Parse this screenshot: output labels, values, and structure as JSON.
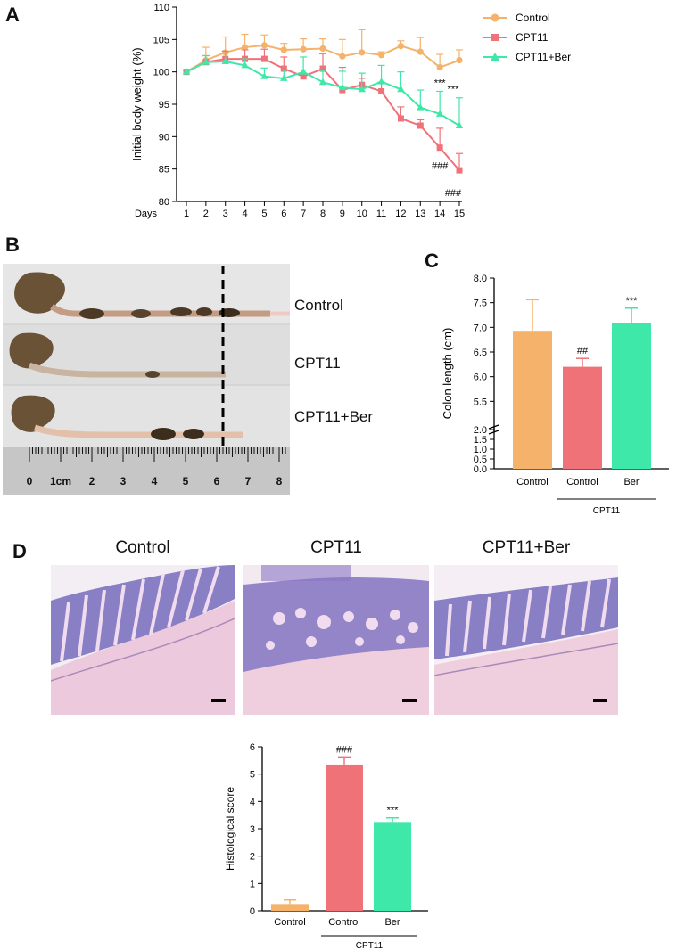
{
  "panels": {
    "a": "A",
    "b": "B",
    "c": "C",
    "d": "D"
  },
  "colors": {
    "control": "#f5b26b",
    "cpt11": "#f07279",
    "ber": "#3ee8a8"
  },
  "chart_data": [
    {
      "type": "line",
      "panel": "A",
      "ylabel": "Initial body weight (%)",
      "xlabel": "Days",
      "ylim": [
        80,
        110
      ],
      "yticks": [
        80,
        85,
        90,
        95,
        100,
        105,
        110
      ],
      "x": [
        1,
        2,
        3,
        4,
        5,
        6,
        7,
        8,
        9,
        10,
        11,
        12,
        13,
        14,
        15
      ],
      "legend_position": "top-right",
      "series": [
        {
          "name": "Control",
          "marker": "circle",
          "values": [
            100,
            101.8,
            103.0,
            103.8,
            104.1,
            103.4,
            103.5,
            103.6,
            102.4,
            103.0,
            102.6,
            104.0,
            103.1,
            100.7,
            101.8
          ],
          "errors": [
            0.3,
            2.0,
            2.4,
            2.0,
            1.6,
            1.0,
            1.6,
            1.5,
            2.6,
            3.5,
            0.5,
            0.8,
            2.2,
            2.0,
            1.6
          ]
        },
        {
          "name": "CPT11",
          "marker": "square",
          "values": [
            100,
            101.5,
            102.0,
            102.0,
            102.0,
            100.5,
            99.3,
            100.5,
            97.2,
            98.0,
            97.0,
            92.8,
            91.7,
            88.3,
            84.8
          ],
          "errors": [
            0.3,
            1.0,
            1.2,
            1.4,
            1.5,
            1.8,
            1.0,
            2.3,
            3.5,
            1.0,
            1.4,
            1.8,
            0.9,
            3.0,
            2.6
          ]
        },
        {
          "name": "CPT11+Ber",
          "marker": "triangle",
          "values": [
            100,
            101.5,
            101.6,
            101.0,
            99.3,
            99.0,
            100.0,
            98.4,
            97.6,
            97.3,
            98.5,
            97.3,
            94.5,
            93.5,
            91.7
          ],
          "errors": [
            0.3,
            1.0,
            1.3,
            1.0,
            1.3,
            1.3,
            2.3,
            1.8,
            2.5,
            2.5,
            2.5,
            2.7,
            2.7,
            3.5,
            4.3
          ]
        }
      ],
      "annotations": [
        {
          "x": 14,
          "text": "***",
          "pos": "above"
        },
        {
          "x": 15,
          "text": "***",
          "pos": "above"
        },
        {
          "x": 14,
          "text": "###",
          "pos": "below"
        },
        {
          "x": 15,
          "text": "###",
          "pos": "below"
        }
      ]
    },
    {
      "type": "bar",
      "panel": "C",
      "ylabel": "Colon length (cm)",
      "y_axis_break": [
        2.0,
        5.0
      ],
      "yticks": [
        "0.0",
        "0.5",
        "1.0",
        "1.5",
        "2.0",
        "5.5",
        "6.0",
        "6.5",
        "7.0",
        "7.5",
        "8.0"
      ],
      "categories": [
        "Control",
        "Control",
        "Ber"
      ],
      "group_label": "CPT11",
      "values": [
        6.93,
        6.2,
        7.08
      ],
      "errors": [
        0.63,
        0.17,
        0.31
      ],
      "bar_colors": [
        "#f5b26b",
        "#f07279",
        "#3ee8a8"
      ],
      "significance": [
        "",
        "##",
        "***"
      ]
    },
    {
      "type": "bar",
      "panel": "D",
      "ylabel": "Histological score",
      "ylim": [
        0,
        6
      ],
      "yticks": [
        0,
        1,
        2,
        3,
        4,
        5,
        6
      ],
      "categories": [
        "Control",
        "Control",
        "Ber"
      ],
      "group_label": "CPT11",
      "values": [
        0.25,
        5.35,
        3.25
      ],
      "errors": [
        0.15,
        0.28,
        0.15
      ],
      "bar_colors": [
        "#f5b26b",
        "#f07279",
        "#3ee8a8"
      ],
      "significance": [
        "",
        "###",
        "***"
      ]
    }
  ],
  "colon_photo": {
    "labels": [
      "Control",
      "CPT11",
      "CPT11+Ber"
    ],
    "ruler_numbers": [
      "0",
      "1cm",
      "2",
      "3",
      "4",
      "5",
      "6",
      "7",
      "8"
    ]
  },
  "histology": {
    "titles": [
      "Control",
      "CPT11",
      "CPT11+Ber"
    ]
  }
}
